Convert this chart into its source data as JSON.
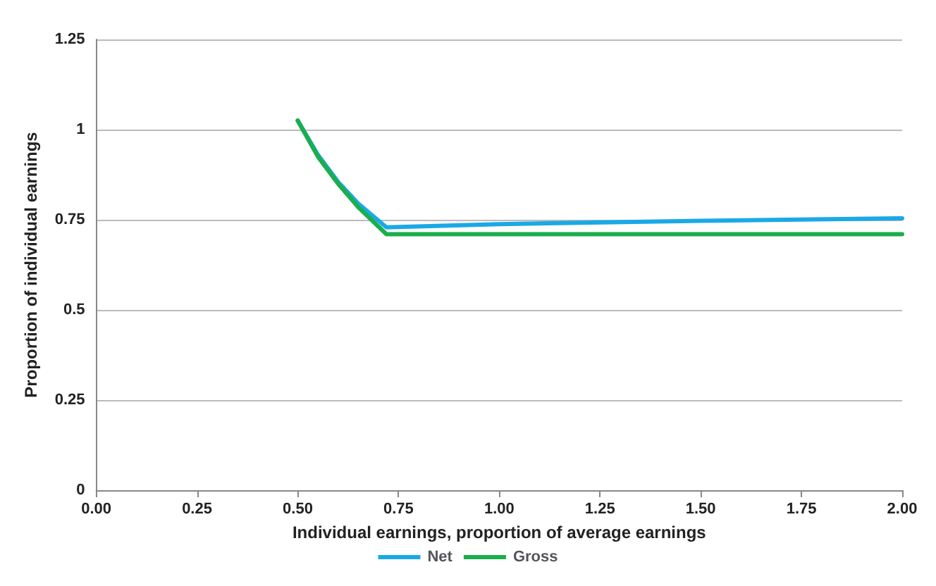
{
  "chart_data": {
    "type": "line",
    "xlabel": "Individual earnings, proportion of average earnings",
    "ylabel": "Proportion of individual earnings",
    "xlim": [
      0,
      2
    ],
    "xticks": [
      {
        "value": 0,
        "label": "0.00"
      },
      {
        "value": 0.25,
        "label": "0.25"
      },
      {
        "value": 0.5,
        "label": "0.50"
      },
      {
        "value": 0.75,
        "label": "0.75"
      },
      {
        "value": 1,
        "label": "1.00"
      },
      {
        "value": 1.25,
        "label": "1.25"
      },
      {
        "value": 1.5,
        "label": "1.50"
      },
      {
        "value": 1.75,
        "label": "1.75"
      },
      {
        "value": 2,
        "label": "2.00"
      }
    ],
    "ylim": [
      0,
      1.25
    ],
    "yticks": [
      0,
      0.25,
      0.5,
      0.75,
      1,
      1.25
    ],
    "grid": "y",
    "legend": "bottom",
    "marker": "none",
    "series": [
      {
        "name": "Net",
        "color": "#1aa9e6",
        "x": [
          0.5,
          0.55,
          0.6,
          0.65,
          0.72,
          1,
          1.5,
          2
        ],
        "values": [
          1.025,
          0.93,
          0.855,
          0.795,
          0.729,
          0.738,
          0.747,
          0.754
        ]
      },
      {
        "name": "Gross",
        "color": "#1aae4c",
        "x": [
          0.5,
          0.55,
          0.6,
          0.65,
          0.72,
          1,
          1.5,
          2
        ],
        "values": [
          1.025,
          0.925,
          0.85,
          0.785,
          0.71,
          0.71,
          0.71,
          0.71
        ]
      }
    ]
  }
}
